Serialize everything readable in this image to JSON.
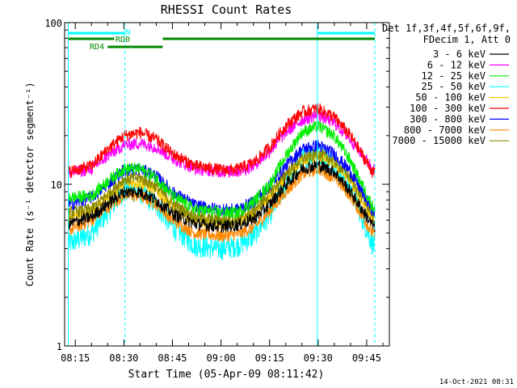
{
  "chart_data": {
    "type": "line",
    "title": "RHESSI Count Rates",
    "xlabel": "Start Time (05-Apr-09 08:11:42)",
    "ylabel": "Count Rate (s⁻¹ detector segment⁻¹)",
    "y_scale": "log",
    "ylim": [
      1,
      100
    ],
    "y_ticks": [
      {
        "value": 1,
        "label": "1"
      },
      {
        "value": 10,
        "label": "10"
      },
      {
        "value": 100,
        "label": "100"
      }
    ],
    "xlim": [
      "08:11:42",
      "09:52:00"
    ],
    "x_ticks": [
      {
        "value": "08:15",
        "label": "08:15"
      },
      {
        "value": "08:30",
        "label": "08:30"
      },
      {
        "value": "08:45",
        "label": "08:45"
      },
      {
        "value": "09:00",
        "label": "09:00"
      },
      {
        "value": "09:15",
        "label": "09:15"
      },
      {
        "value": "09:30",
        "label": "09:30"
      },
      {
        "value": "09:45",
        "label": "09:45"
      }
    ],
    "legend_header": [
      "Det 1f,3f,4f,5f,6f,9f,",
      "FDecim 1, Att 0"
    ],
    "legend_position": "right",
    "x": [
      "08:13:00",
      "08:20:00",
      "08:25:00",
      "08:30:00",
      "08:35:00",
      "08:40:00",
      "08:45:00",
      "08:52:00",
      "09:00:00",
      "09:05:00",
      "09:10:00",
      "09:15:00",
      "09:20:00",
      "09:25:00",
      "09:30:00",
      "09:35:00",
      "09:40:00",
      "09:47:00"
    ],
    "series": [
      {
        "name": "3 - 6 keV",
        "color": "#000000",
        "values": [
          5.7,
          6.3,
          7.6,
          9.0,
          9.0,
          8.0,
          6.6,
          5.7,
          5.5,
          5.6,
          6.1,
          7.5,
          10.0,
          12.5,
          13.2,
          12.0,
          9.0,
          5.5
        ]
      },
      {
        "name": "6 - 12 keV",
        "color": "#ff00ff",
        "values": [
          11.7,
          12.5,
          15.0,
          17.5,
          18.0,
          17.0,
          14.5,
          12.5,
          12.0,
          12.0,
          13.0,
          16.0,
          21.0,
          25.0,
          27.0,
          24.0,
          19.0,
          12.5
        ]
      },
      {
        "name": "12 - 25 keV",
        "color": "#00ee00",
        "values": [
          8.3,
          8.5,
          10.5,
          12.5,
          12.5,
          11.0,
          8.5,
          7.0,
          6.7,
          6.7,
          7.8,
          10.0,
          15.0,
          21.0,
          23.0,
          20.0,
          14.0,
          7.2
        ]
      },
      {
        "name": "25 - 50 keV",
        "color": "#00ffff",
        "values": [
          4.3,
          5.0,
          6.8,
          9.2,
          9.0,
          7.5,
          5.5,
          4.2,
          4.0,
          4.2,
          4.8,
          6.5,
          10.0,
          14.5,
          16.0,
          13.5,
          9.5,
          4.2
        ]
      },
      {
        "name": "50 - 100 keV",
        "color": "#ffcc00",
        "values": [
          6.3,
          6.8,
          8.3,
          10.2,
          10.3,
          9.2,
          7.3,
          6.0,
          5.7,
          5.8,
          6.5,
          8.3,
          11.0,
          14.0,
          15.0,
          13.5,
          10.5,
          6.0
        ]
      },
      {
        "name": "100 - 300 keV",
        "color": "#ff0000",
        "values": [
          12.0,
          13.0,
          16.5,
          20.0,
          21.0,
          19.0,
          15.5,
          13.0,
          12.3,
          12.4,
          13.6,
          17.0,
          23.0,
          28.0,
          29.5,
          26.0,
          20.0,
          11.8
        ]
      },
      {
        "name": "300 - 800 keV",
        "color": "#0000ff",
        "values": [
          7.5,
          8.3,
          10.0,
          12.3,
          12.5,
          11.3,
          9.0,
          7.4,
          7.0,
          7.0,
          7.8,
          9.8,
          13.0,
          16.5,
          17.5,
          15.5,
          12.0,
          6.8
        ]
      },
      {
        "name": "800 - 7000 keV",
        "color": "#ff8800",
        "values": [
          5.2,
          6.0,
          7.2,
          8.6,
          8.5,
          7.6,
          6.0,
          5.0,
          4.8,
          4.9,
          5.4,
          6.8,
          9.0,
          11.5,
          12.5,
          11.0,
          8.5,
          4.9
        ]
      },
      {
        "name": "7000 - 15000 keV",
        "color": "#888800",
        "values": [
          6.7,
          7.0,
          8.7,
          10.8,
          11.0,
          9.7,
          7.6,
          6.3,
          6.0,
          6.1,
          6.9,
          8.8,
          11.6,
          14.5,
          15.5,
          14.0,
          11.0,
          6.5
        ]
      }
    ],
    "vertical_lines": [
      {
        "t": "08:12:50",
        "style": "solid",
        "color": "#00ffff"
      },
      {
        "t": "08:30:20",
        "style": "dashed",
        "color": "#00ffff"
      },
      {
        "t": "09:29:45",
        "style": "solid",
        "color": "#00ffff"
      },
      {
        "t": "09:47:30",
        "style": "dashed",
        "color": "#00ffff"
      }
    ],
    "flag_bars": [
      {
        "label": "N",
        "color": "#00ffff",
        "y_rank": 0,
        "spans": [
          [
            "08:12:50",
            "08:30:20"
          ],
          [
            "09:29:45",
            "09:47:30"
          ]
        ]
      },
      {
        "label": "RD0",
        "color": "#008800",
        "y_rank": 1,
        "spans": [
          [
            "08:12:50",
            "08:27:00"
          ],
          [
            "08:42:00",
            "09:47:30"
          ]
        ]
      },
      {
        "label": "RD4",
        "color": "#008800",
        "y_rank": 2,
        "spans": [
          [
            "08:25:00",
            "08:42:00"
          ]
        ]
      }
    ],
    "footer_date": "14-Oct-2021 08:31"
  }
}
